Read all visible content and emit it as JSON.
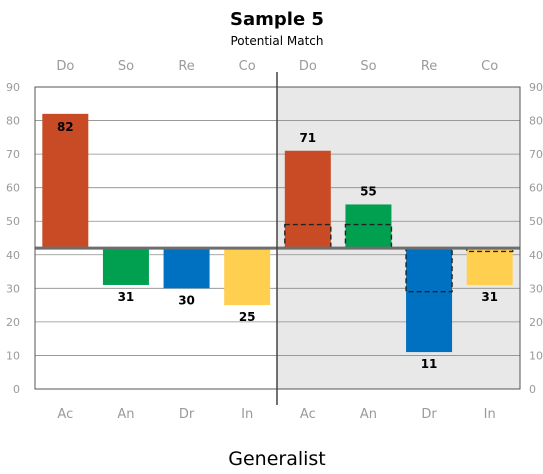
{
  "chart_data": {
    "type": "bar",
    "title": "Sample 5",
    "subtitle": "Potential Match",
    "xlabel": "Generalist",
    "ylim": [
      0,
      90
    ],
    "yticks": [
      0,
      10,
      20,
      30,
      40,
      50,
      60,
      70,
      80,
      90
    ],
    "baseline": 42,
    "grid": true,
    "top_categories": [
      "Do",
      "So",
      "Re",
      "Co",
      "Do",
      "So",
      "Re",
      "Co"
    ],
    "bottom_categories": [
      "Ac",
      "An",
      "Dr",
      "In",
      "Ac",
      "An",
      "Dr",
      "In"
    ],
    "panels": [
      {
        "background": "#ffffff",
        "bars": [
          {
            "top_label": "Do",
            "bottom_label": "Ac",
            "value": 82,
            "label": "82",
            "color": "#c84b26"
          },
          {
            "top_label": "So",
            "bottom_label": "An",
            "value": 31,
            "label": "31",
            "color": "#00a050"
          },
          {
            "top_label": "Re",
            "bottom_label": "Dr",
            "value": 30,
            "label": "30",
            "color": "#0070c0"
          },
          {
            "top_label": "Co",
            "bottom_label": "In",
            "value": 25,
            "label": "25",
            "color": "#ffd050"
          }
        ]
      },
      {
        "background": "#e8e8e8",
        "bars": [
          {
            "top_label": "Do",
            "bottom_label": "Ac",
            "value": 71,
            "label": "71",
            "color": "#c84b26",
            "reference": 49
          },
          {
            "top_label": "So",
            "bottom_label": "An",
            "value": 55,
            "label": "55",
            "color": "#00a050",
            "reference": 49
          },
          {
            "top_label": "Re",
            "bottom_label": "Dr",
            "value": 11,
            "label": "11",
            "color": "#0070c0",
            "reference": 29
          },
          {
            "top_label": "Co",
            "bottom_label": "In",
            "value": 31,
            "label": "31",
            "color": "#ffd050",
            "reference": 41
          }
        ]
      }
    ]
  }
}
